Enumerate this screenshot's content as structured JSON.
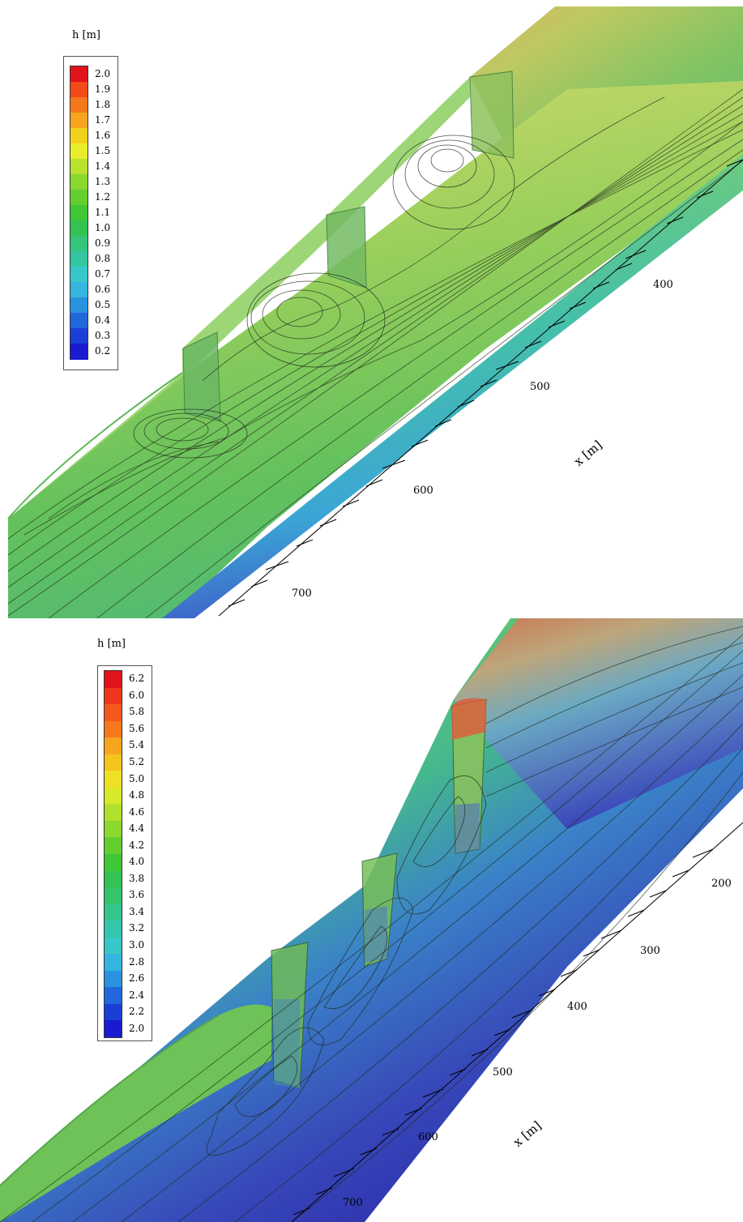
{
  "panels": [
    {
      "id": "top",
      "legend": {
        "title": "h [m]",
        "levels": [
          "2.0",
          "1.9",
          "1.8",
          "1.7",
          "1.6",
          "1.5",
          "1.4",
          "1.3",
          "1.2",
          "1.1",
          "1.0",
          "0.9",
          "0.8",
          "0.7",
          "0.6",
          "0.5",
          "0.4",
          "0.3",
          "0.2"
        ],
        "colors": [
          "#e0141a",
          "#f24a18",
          "#f5781c",
          "#f7a51e",
          "#f2d11c",
          "#e8ed2b",
          "#b9e22e",
          "#8bd82e",
          "#63cf2f",
          "#3fc735",
          "#34c352",
          "#34c47a",
          "#34c6a0",
          "#36c8c8",
          "#35b5df",
          "#2a93e0",
          "#2068dc",
          "#1a3fd6",
          "#1a1ad0"
        ]
      },
      "axis": {
        "title": "x [m]",
        "ticks": [
          "400",
          "500",
          "600",
          "700"
        ]
      }
    },
    {
      "id": "bottom",
      "legend": {
        "title": "h [m]",
        "levels": [
          "6.2",
          "6.0",
          "5.8",
          "5.6",
          "5.4",
          "5.2",
          "5.0",
          "4.8",
          "4.6",
          "4.4",
          "4.2",
          "4.0",
          "3.8",
          "3.6",
          "3.4",
          "3.2",
          "3.0",
          "2.8",
          "2.6",
          "2.4",
          "2.2",
          "2.0"
        ],
        "colors": [
          "#e0141a",
          "#f0361a",
          "#f5581c",
          "#f5781c",
          "#f7a51e",
          "#f5c41f",
          "#f0e024",
          "#d6ea2a",
          "#b2e02e",
          "#8bd82e",
          "#63cf2f",
          "#3fc735",
          "#34c352",
          "#34c46c",
          "#34c58e",
          "#34c6ae",
          "#36c8c8",
          "#35b5df",
          "#2a93e0",
          "#2068dc",
          "#1a3fd6",
          "#1a1ad0"
        ]
      },
      "axis": {
        "title": "x [m]",
        "ticks": [
          "200",
          "300",
          "400",
          "500",
          "600",
          "700"
        ]
      }
    }
  ]
}
